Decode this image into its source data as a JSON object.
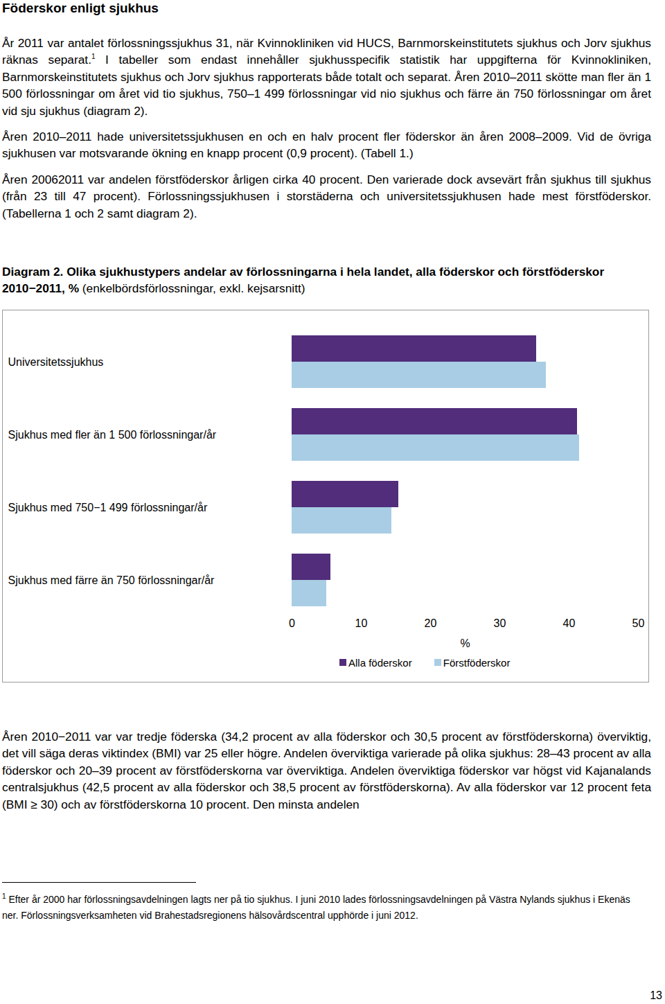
{
  "heading": "Föderskor enligt sjukhus",
  "paragraphs_before": [
    [
      {
        "text": "År 2011 var antalet förlossningssjukhus 31, när Kvinnokliniken vid HUCS, Barnmorskeinstitutets sjukhus och Jorv sjukhus räknas separat."
      },
      {
        "sup": "1"
      },
      {
        "text": " I tabeller som endast innehåller sjukhusspecifik statistik har uppgifterna för Kvinnokliniken, Barnmorskeinstitutets sjukhus och Jorv sjukhus rapporterats både totalt och separat. Åren 2010–2011 skötte man fler än 1 500 förlossningar om året vid tio sjukhus, 750–1 499 förlossningar vid nio sjukhus och färre än 750 förlossningar om året vid sju sjukhus (diagram 2)."
      }
    ],
    [
      {
        "text": "Åren 2010–2011 hade universitetssjukhusen en och en halv procent fler föderskor än åren 2008–2009. Vid de övriga sjukhusen var motsvarande ökning en knapp procent (0,9 procent). (Tabell 1.)"
      }
    ],
    [
      {
        "text": "Åren 20062011 var andelen förstföderskor årligen cirka 40 procent. Den varierade dock avsevärt från sjukhus till sjukhus (från 23 till 47 procent). Förlossningssjukhusen i storstäderna och universitetssjukhusen hade mest förstföderskor. (Tabellerna 1 och 2 samt diagram 2)."
      }
    ]
  ],
  "diagram_caption": [
    {
      "text": "Diagram 2. Olika sjukhustypers andelar av förlossningarna i hela landet, alla föderskor och förstföderskor 2010−2011, %",
      "bold": true
    },
    {
      "text": " (enkelbördsförlossningar, exkl. kejsarsnitt)"
    }
  ],
  "chart_data": {
    "type": "bar",
    "orientation": "horizontal",
    "categories": [
      "Universitetssjukhus",
      "Sjukhus med fler än 1 500 förlossningar/år",
      "Sjukhus med 750−1 499 förlossningar/år",
      "Sjukhus med färre än 750 förlossningar/år"
    ],
    "series": [
      {
        "name": "Alla föderskor",
        "color": "#512d7b",
        "values": [
          35.3,
          41.2,
          15.4,
          5.6
        ]
      },
      {
        "name": "Förstföderskor",
        "color": "#a9cde4",
        "values": [
          36.7,
          41.5,
          14.4,
          5.0
        ]
      }
    ],
    "xlabel": "%",
    "xlim": [
      0,
      50
    ],
    "xticks": [
      0,
      10,
      20,
      30,
      40,
      50
    ],
    "grid": false,
    "legend": "bottom"
  },
  "paragraphs_after": [
    [
      {
        "text": "Åren 2010−2011 var var tredje föderska (34,2 procent av alla föderskor och 30,5 procent av förstföderskorna) överviktig, det vill säga deras viktindex (BMI) var 25 eller högre. Andelen överviktiga varierade på olika sjukhus: 28–43 procent av alla föderskor och 20–39 procent av förstföderskorna var överviktiga. Andelen överviktiga föderskor var högst vid Kajanalands centralsjukhus (42,5 procent av alla föderskor och 38,5 procent av förstföderskorna). Av alla föderskor var 12 procent feta (BMI ≥ 30) och av förstföderskorna 10 procent. Den minsta andelen"
      }
    ]
  ],
  "footnote": [
    {
      "sup": "1"
    },
    {
      "text": " Efter år 2000 har förlossningsavdelningen lagts ner på tio sjukhus. I juni 2010 lades förlossningsavdelningen på Västra Nylands sjukhus i Ekenäs ner. Förlossningsverksamheten vid Brahestadsregionens hälsovårdscentral upphörde i juni 2012."
    }
  ],
  "page_number": "13"
}
